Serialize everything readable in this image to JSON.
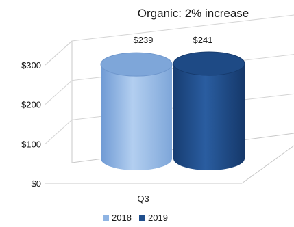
{
  "chart_data": {
    "type": "bar",
    "title": "Organic: 2% increase",
    "categories": [
      "Q3"
    ],
    "series": [
      {
        "name": "2018",
        "values": [
          239
        ],
        "label": "$239",
        "color": "#8fb4e3"
      },
      {
        "name": "2019",
        "values": [
          241
        ],
        "label": "$241",
        "color": "#1f4e8c"
      }
    ],
    "ylim": [
      0,
      300
    ],
    "yticks": [
      {
        "value": 0,
        "label": "$0"
      },
      {
        "value": 100,
        "label": "$100"
      },
      {
        "value": 200,
        "label": "$200"
      },
      {
        "value": 300,
        "label": "$300"
      }
    ],
    "xlabel": "",
    "ylabel": "",
    "grid": true,
    "legend_position": "bottom",
    "style": "3d-cylinder"
  }
}
